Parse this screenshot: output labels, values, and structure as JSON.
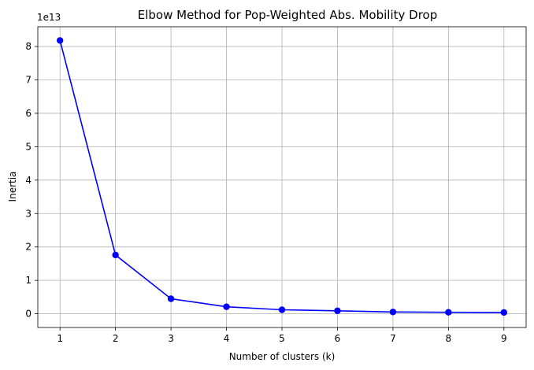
{
  "chart_data": {
    "type": "line",
    "title": "Elbow Method for Pop-Weighted Abs. Mobility Drop",
    "xlabel": "Number of clusters (k)",
    "ylabel": "Inertia",
    "y_offset_label": "1e13",
    "x": [
      1,
      2,
      3,
      4,
      5,
      6,
      7,
      8,
      9
    ],
    "series": [
      {
        "values": [
          8.18,
          1.76,
          0.45,
          0.21,
          0.12,
          0.09,
          0.055,
          0.045,
          0.04
        ],
        "color": "#0000ff",
        "marker": "circle"
      }
    ],
    "xticks": [
      "1",
      "2",
      "3",
      "4",
      "5",
      "6",
      "7",
      "8",
      "9"
    ],
    "yticks": [
      "0",
      "1",
      "2",
      "3",
      "4",
      "5",
      "6",
      "7",
      "8"
    ],
    "xlim": [
      0.6,
      9.4
    ],
    "ylim": [
      -0.41,
      8.59
    ],
    "grid": true
  }
}
